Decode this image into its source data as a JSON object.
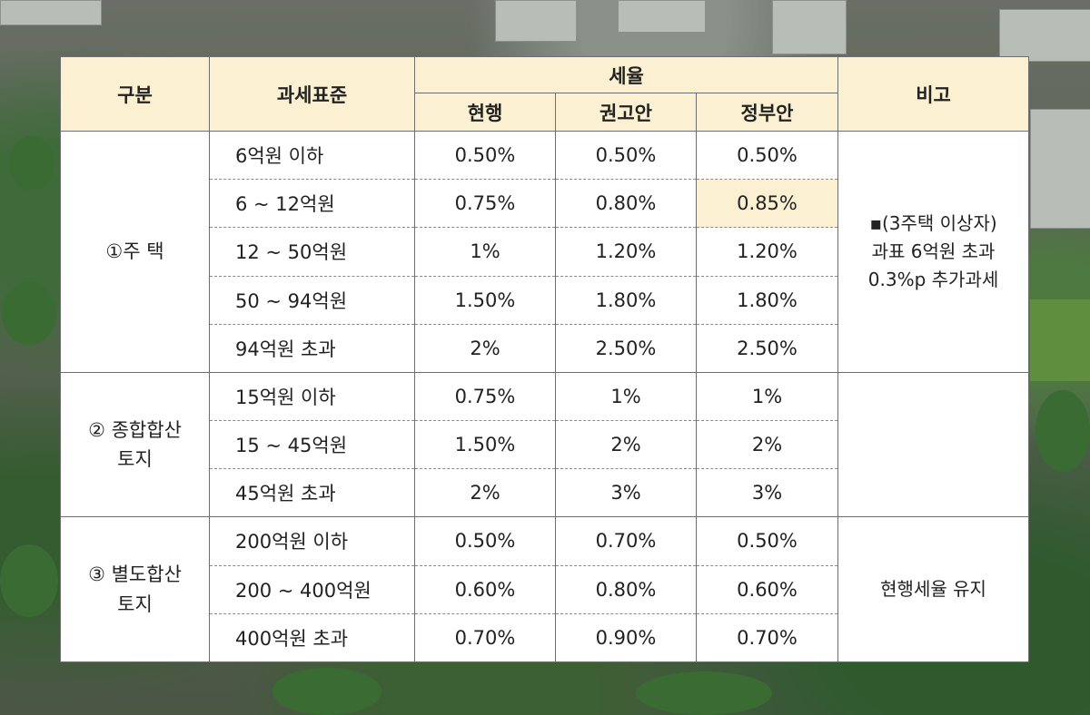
{
  "header": {
    "category": "구분",
    "tax_base": "과세표준",
    "tax_rate": "세율",
    "current": "현행",
    "recommended": "권고안",
    "government": "정부안",
    "remarks": "비고"
  },
  "groups": [
    {
      "category_lines": [
        "①주 택"
      ],
      "note": [
        "▪(3주택 이상자)",
        "과표 6억원 초과",
        "0.3%p 추가과세"
      ],
      "rows": [
        {
          "base": "6억원 이하",
          "current": "0.50%",
          "recommended": "0.50%",
          "government": "0.50%"
        },
        {
          "base": "6  ~  12억원",
          "current": "0.75%",
          "recommended": "0.80%",
          "government": "0.85%"
        },
        {
          "base": "12 ~ 50억원",
          "current": "1%",
          "recommended": "1.20%",
          "government": "1.20%"
        },
        {
          "base": "50 ~ 94억원",
          "current": "1.50%",
          "recommended": "1.80%",
          "government": "1.80%"
        },
        {
          "base": "94억원 초과",
          "current": "2%",
          "recommended": "2.50%",
          "government": "2.50%"
        }
      ]
    },
    {
      "category_lines": [
        "② 종합합산",
        "토지"
      ],
      "note": [],
      "rows": [
        {
          "base": "15억원 이하",
          "current": "0.75%",
          "recommended": "1%",
          "government": "1%"
        },
        {
          "base": "15  ~  45억원",
          "current": "1.50%",
          "recommended": "2%",
          "government": "2%"
        },
        {
          "base": "45억원 초과",
          "current": "2%",
          "recommended": "3%",
          "government": "3%"
        }
      ]
    },
    {
      "category_lines": [
        "③ 별도합산",
        "토지"
      ],
      "note": [
        "현행세율 유지"
      ],
      "rows": [
        {
          "base": "200억원 이하",
          "current": "0.50%",
          "recommended": "0.70%",
          "government": "0.50%"
        },
        {
          "base": "200 ~ 400억원",
          "current": "0.60%",
          "recommended": "0.80%",
          "government": "0.60%"
        },
        {
          "base": "400억원 초과",
          "current": "0.70%",
          "recommended": "0.90%",
          "government": "0.70%"
        }
      ]
    }
  ],
  "colors": {
    "header_bg": "#fbf0d2",
    "highlight_bg": "#fbf0d2",
    "border": "#6e6e6e"
  }
}
